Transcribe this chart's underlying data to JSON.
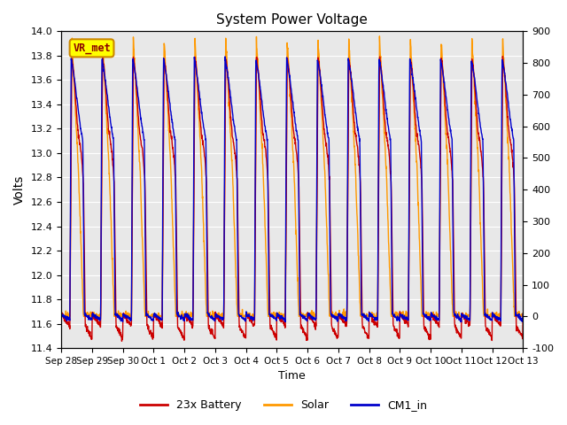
{
  "title": "System Power Voltage",
  "xlabel": "Time",
  "ylabel_left": "Volts",
  "ylabel_right": "",
  "ylim_left": [
    11.4,
    14.0
  ],
  "ylim_right": [
    -100,
    900
  ],
  "yticks_left": [
    11.4,
    11.6,
    11.8,
    12.0,
    12.2,
    12.4,
    12.6,
    12.8,
    13.0,
    13.2,
    13.4,
    13.6,
    13.8,
    14.0
  ],
  "yticks_right": [
    -100,
    0,
    100,
    200,
    300,
    400,
    500,
    600,
    700,
    800,
    900
  ],
  "xtick_labels": [
    "Sep 28",
    "Sep 29",
    "Sep 30",
    "Oct 1",
    "Oct 2",
    "Oct 3",
    "Oct 4",
    "Oct 5",
    "Oct 6",
    "Oct 7",
    "Oct 8",
    "Oct 9",
    "Oct 10",
    "Oct 11",
    "Oct 12",
    "Oct 13"
  ],
  "color_battery": "#cc0000",
  "color_solar": "#ff9900",
  "color_cm1": "#0000cc",
  "legend_labels": [
    "23x Battery",
    "Solar",
    "CM1_in"
  ],
  "annotation_text": "VR_met",
  "annotation_box_color": "#ffff00",
  "annotation_border_color": "#cc8800",
  "background_color": "#e8e8e8",
  "n_points": 2000
}
